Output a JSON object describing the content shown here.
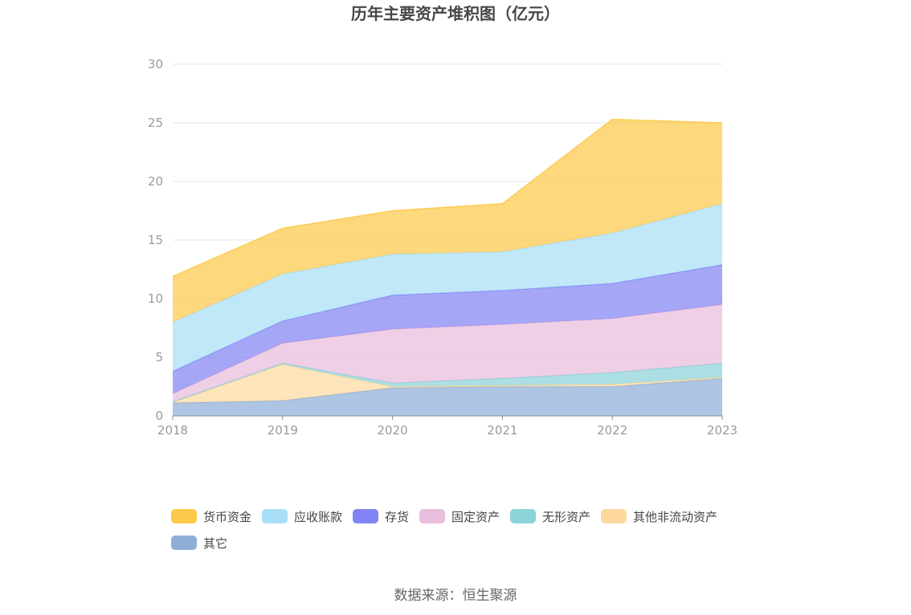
{
  "source": "数据来源：恒生聚源",
  "chart_data": {
    "type": "area",
    "stacked": true,
    "title": "历年主要资产堆积图（亿元）",
    "x": [
      "2018",
      "2019",
      "2020",
      "2021",
      "2022",
      "2023"
    ],
    "ylim": [
      0,
      30
    ],
    "yticks": [
      0,
      5,
      10,
      15,
      20,
      25,
      30
    ],
    "grid": true,
    "legend_position": "bottom",
    "series": [
      {
        "name": "其它",
        "color": "#8eaed8",
        "values": [
          1.1,
          1.3,
          2.4,
          2.5,
          2.5,
          3.2
        ]
      },
      {
        "name": "其他非流动资产",
        "color": "#fdd9a0",
        "values": [
          0.05,
          3.1,
          0.1,
          0.1,
          0.2,
          0.1
        ]
      },
      {
        "name": "无形资产",
        "color": "#8cd3d8",
        "values": [
          0.05,
          0.1,
          0.3,
          0.6,
          1.0,
          1.2
        ]
      },
      {
        "name": "固定资产",
        "color": "#e9bddc",
        "values": [
          0.7,
          1.7,
          4.6,
          4.6,
          4.6,
          5.0
        ]
      },
      {
        "name": "存货",
        "color": "#8284f3",
        "values": [
          1.9,
          1.9,
          2.9,
          2.9,
          3.0,
          3.4
        ]
      },
      {
        "name": "应收账款",
        "color": "#a8dff7",
        "values": [
          4.2,
          4.0,
          3.5,
          3.3,
          4.3,
          5.2
        ]
      },
      {
        "name": "货币资金",
        "color": "#fdc94a",
        "values": [
          3.9,
          3.9,
          3.7,
          4.1,
          9.7,
          6.9
        ]
      }
    ],
    "legend_order": [
      "货币资金",
      "应收账款",
      "存货",
      "固定资产",
      "无形资产",
      "其他非流动资产",
      "其它"
    ]
  }
}
